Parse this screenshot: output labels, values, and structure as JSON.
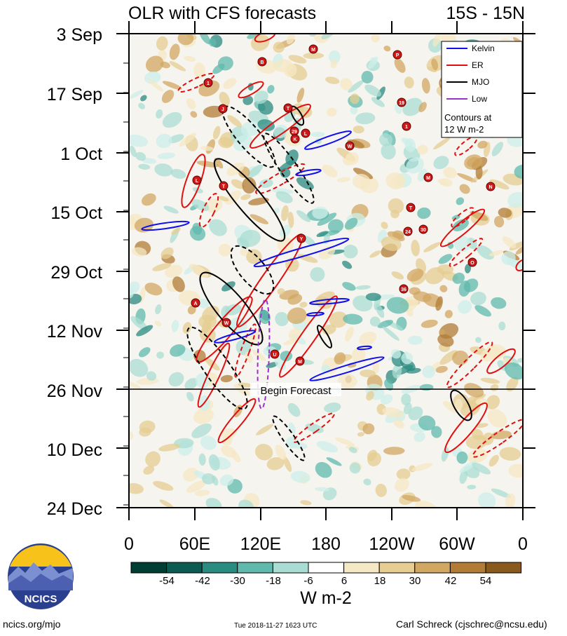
{
  "chart_data": {
    "type": "heatmap",
    "title": "OLR with CFS forecasts",
    "region": "15S - 15N",
    "x_ticks": [
      "0",
      "60E",
      "120E",
      "180",
      "120W",
      "60W",
      "0"
    ],
    "y_ticks": [
      "3 Sep",
      "17 Sep",
      "1 Oct",
      "15 Oct",
      "29 Oct",
      "12 Nov",
      "26 Nov",
      "10 Dec",
      "24 Dec"
    ],
    "forecast_start_label": "Begin Forecast",
    "forecast_start_date": "26 Nov",
    "legend": {
      "entries": [
        {
          "name": "Kelvin",
          "color": "#1010ee"
        },
        {
          "name": "ER",
          "color": "#e01010"
        },
        {
          "name": "MJO",
          "color": "#000000"
        },
        {
          "name": "Low",
          "color": "#9933cc"
        }
      ],
      "note_line1": "Contours at",
      "note_line2": "12 W m-2",
      "placement": "top-right"
    },
    "colorbar": {
      "labels": [
        "-54",
        "-42",
        "-30",
        "-18",
        "-6",
        "6",
        "18",
        "30",
        "42",
        "54"
      ],
      "colors": [
        "#003d32",
        "#0a5c52",
        "#2a8b80",
        "#5fb9ad",
        "#a9ddd3",
        "#ccefe9",
        "#ffffff",
        "#f5e8c4",
        "#e6cd92",
        "#d1a762",
        "#b27c36",
        "#8a5a1c",
        "#5e3a0b"
      ],
      "units": "W m-2"
    },
    "storm_labels": [
      "1",
      "B",
      "M",
      "P",
      "19",
      "T",
      "29",
      "L",
      "K",
      "W",
      "L",
      "T",
      "J",
      "M",
      "N",
      "T",
      "24",
      "30",
      "Y",
      "O",
      "36",
      "A",
      "W",
      "U",
      "M",
      "1"
    ]
  },
  "footer": {
    "logo_text": "NCICS",
    "left": "ncics.org/mjo",
    "center": "Tue 2018-11-27 1623 UTC",
    "right": "Carl Schreck (cjschrec@ncsu.edu)"
  }
}
